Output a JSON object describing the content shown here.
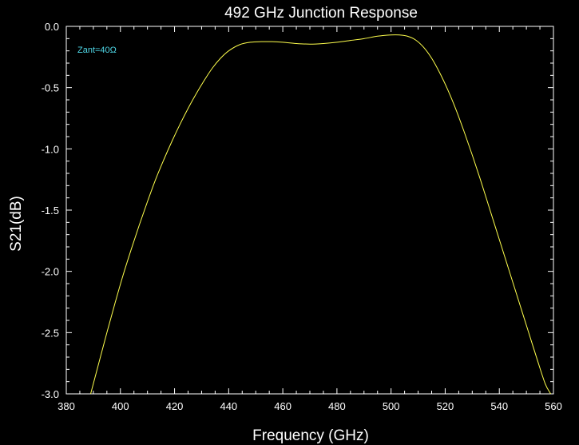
{
  "chart_data": {
    "type": "line",
    "title": "492 GHz Junction Response",
    "xlabel": "Frequency (GHz)",
    "ylabel": "S21(dB)",
    "xlim": [
      380,
      560
    ],
    "ylim": [
      -3.0,
      0.0
    ],
    "x_ticks": [
      380,
      400,
      420,
      440,
      460,
      480,
      500,
      520,
      540,
      560
    ],
    "x_tick_labels": [
      "380",
      "400",
      "420",
      "440",
      "460",
      "480",
      "500",
      "520",
      "540",
      "560"
    ],
    "y_ticks": [
      0.0,
      -0.5,
      -1.0,
      -1.5,
      -2.0,
      -2.5,
      -3.0
    ],
    "y_tick_labels": [
      "0.0",
      "-0.5",
      "-1.0",
      "-1.5",
      "-2.0",
      "-2.5",
      "-3.0"
    ],
    "annotation": "Zant=40Ω",
    "grid": false,
    "colors": {
      "background": "#000000",
      "axes": "#ffffff",
      "line": "#ffff4d",
      "annotation": "#4fd8e8"
    },
    "series": [
      {
        "x": [
          389,
          392,
          395,
          398,
          401,
          404,
          407,
          410,
          413,
          416,
          419,
          422,
          425,
          428,
          431,
          434,
          437,
          440,
          444,
          448,
          452,
          456,
          460,
          465,
          470,
          475,
          480,
          485,
          490,
          495,
          500,
          503,
          506,
          509,
          512,
          515,
          518,
          521,
          524,
          527,
          530,
          533,
          536,
          539,
          542,
          545,
          548,
          551,
          554,
          557,
          559
        ],
        "y": [
          -3.0,
          -2.75,
          -2.5,
          -2.26,
          -2.03,
          -1.82,
          -1.62,
          -1.43,
          -1.25,
          -1.09,
          -0.94,
          -0.8,
          -0.67,
          -0.55,
          -0.44,
          -0.34,
          -0.26,
          -0.2,
          -0.15,
          -0.13,
          -0.125,
          -0.125,
          -0.13,
          -0.14,
          -0.145,
          -0.14,
          -0.13,
          -0.115,
          -0.1,
          -0.08,
          -0.07,
          -0.07,
          -0.08,
          -0.11,
          -0.17,
          -0.26,
          -0.38,
          -0.52,
          -0.68,
          -0.86,
          -1.05,
          -1.25,
          -1.46,
          -1.67,
          -1.88,
          -2.09,
          -2.3,
          -2.51,
          -2.72,
          -2.92,
          -3.0
        ]
      }
    ]
  }
}
